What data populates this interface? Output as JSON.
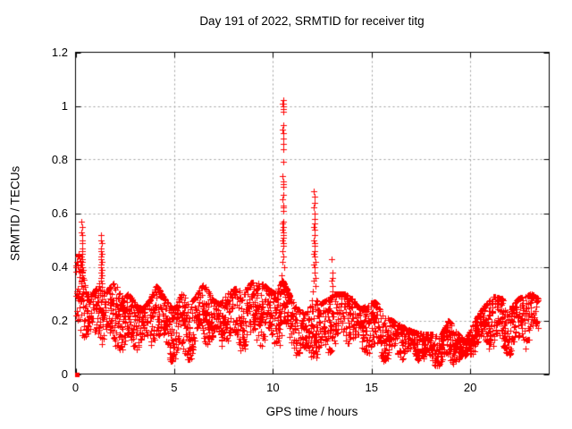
{
  "chart_data": {
    "type": "scatter",
    "title": "Day 191 of 2022, SRMTID for receiver titg",
    "xlabel": "GPS time / hours",
    "ylabel": "SRMTID / TECUs",
    "xlim": [
      0,
      24
    ],
    "ylim": [
      0,
      1.2
    ],
    "xticks": [
      {
        "v": 0,
        "label": "0"
      },
      {
        "v": 5,
        "label": "5"
      },
      {
        "v": 10,
        "label": "10"
      },
      {
        "v": 15,
        "label": "15"
      },
      {
        "v": 20,
        "label": "20"
      }
    ],
    "yticks": [
      {
        "v": 0,
        "label": "0"
      },
      {
        "v": 0.2,
        "label": "0.2"
      },
      {
        "v": 0.4,
        "label": "0.4"
      },
      {
        "v": 0.6,
        "label": "0.6"
      },
      {
        "v": 0.8,
        "label": "0.8"
      },
      {
        "v": 1,
        "label": "1"
      },
      {
        "v": 1.2,
        "label": "1.2"
      }
    ],
    "grid": true,
    "legend": "none",
    "marker": {
      "shape": "plus",
      "size": 7,
      "color": "#ff0000"
    },
    "grid_color": "#9e9e9e",
    "axis_color": "#000000",
    "tick_length": 6,
    "origin_point": {
      "x": 0,
      "y": 0,
      "shape": "square",
      "size": 5
    },
    "spike_points": [
      [
        0.3,
        0.57
      ],
      [
        0.32,
        0.55
      ],
      [
        0.31,
        0.53
      ],
      [
        0.34,
        0.52
      ],
      [
        0.33,
        0.5
      ],
      [
        0.35,
        0.49
      ],
      [
        0.32,
        0.47
      ],
      [
        0.36,
        0.46
      ],
      [
        0.34,
        0.45
      ],
      [
        0.3,
        0.44
      ],
      [
        0.33,
        0.43
      ],
      [
        0.35,
        0.42
      ],
      [
        0.31,
        0.41
      ],
      [
        0.34,
        0.4
      ],
      [
        0.32,
        0.39
      ],
      [
        0.36,
        0.38
      ],
      [
        0.33,
        0.37
      ],
      [
        0.35,
        0.36
      ],
      [
        0.31,
        0.35
      ],
      [
        0.28,
        0.33
      ],
      [
        0.38,
        0.32
      ],
      [
        1.28,
        0.52
      ],
      [
        1.3,
        0.5
      ],
      [
        1.32,
        0.49
      ],
      [
        1.29,
        0.47
      ],
      [
        1.31,
        0.46
      ],
      [
        1.33,
        0.45
      ],
      [
        1.3,
        0.44
      ],
      [
        1.28,
        0.43
      ],
      [
        1.32,
        0.42
      ],
      [
        1.31,
        0.41
      ],
      [
        1.29,
        0.4
      ],
      [
        1.33,
        0.39
      ],
      [
        1.3,
        0.38
      ],
      [
        1.32,
        0.37
      ],
      [
        1.28,
        0.36
      ],
      [
        1.31,
        0.35
      ],
      [
        1.34,
        0.34
      ],
      [
        10.52,
        1.02
      ],
      [
        10.5,
        1.01
      ],
      [
        10.54,
        1.01
      ],
      [
        10.52,
        1.0
      ],
      [
        10.51,
        0.99
      ],
      [
        10.53,
        0.98
      ],
      [
        10.52,
        0.93
      ],
      [
        10.5,
        0.91
      ],
      [
        10.54,
        0.9
      ],
      [
        10.52,
        0.88
      ],
      [
        10.51,
        0.86
      ],
      [
        10.53,
        0.84
      ],
      [
        10.52,
        0.79
      ],
      [
        10.5,
        0.74
      ],
      [
        10.53,
        0.72
      ],
      [
        10.51,
        0.71
      ],
      [
        10.54,
        0.7
      ],
      [
        10.52,
        0.67
      ],
      [
        10.5,
        0.65
      ],
      [
        10.53,
        0.63
      ],
      [
        10.51,
        0.62
      ],
      [
        10.54,
        0.61
      ],
      [
        10.52,
        0.57
      ],
      [
        10.48,
        0.56
      ],
      [
        10.55,
        0.55
      ],
      [
        10.5,
        0.54
      ],
      [
        10.53,
        0.53
      ],
      [
        10.51,
        0.52
      ],
      [
        10.54,
        0.51
      ],
      [
        10.49,
        0.5
      ],
      [
        10.52,
        0.49
      ],
      [
        10.55,
        0.48
      ],
      [
        10.47,
        0.46
      ],
      [
        10.53,
        0.44
      ],
      [
        10.5,
        0.42
      ],
      [
        10.56,
        0.4
      ],
      [
        10.45,
        0.37
      ],
      [
        10.58,
        0.34
      ],
      [
        10.42,
        0.31
      ],
      [
        10.6,
        0.29
      ],
      [
        12.08,
        0.68
      ],
      [
        12.1,
        0.66
      ],
      [
        12.12,
        0.64
      ],
      [
        12.09,
        0.62
      ],
      [
        12.11,
        0.6
      ],
      [
        12.13,
        0.58
      ],
      [
        12.1,
        0.56
      ],
      [
        12.08,
        0.55
      ],
      [
        12.12,
        0.54
      ],
      [
        12.11,
        0.52
      ],
      [
        12.09,
        0.5
      ],
      [
        12.13,
        0.49
      ],
      [
        12.1,
        0.48
      ],
      [
        12.12,
        0.46
      ],
      [
        12.08,
        0.45
      ],
      [
        12.11,
        0.44
      ],
      [
        12.14,
        0.42
      ],
      [
        12.09,
        0.41
      ],
      [
        12.12,
        0.4
      ],
      [
        12.1,
        0.38
      ],
      [
        12.15,
        0.36
      ],
      [
        12.06,
        0.35
      ],
      [
        12.17,
        0.33
      ],
      [
        12.04,
        0.31
      ],
      [
        12.98,
        0.43
      ],
      [
        13.0,
        0.38
      ],
      [
        13.02,
        0.36
      ],
      [
        12.99,
        0.35
      ],
      [
        13.01,
        0.33
      ],
      [
        13.03,
        0.31
      ],
      [
        13.0,
        0.29
      ],
      [
        12.97,
        0.28
      ]
    ],
    "envelope": [
      [
        0.0,
        0.1,
        0.4
      ],
      [
        0.15,
        0.12,
        0.45
      ],
      [
        0.35,
        0.12,
        0.4
      ],
      [
        0.55,
        0.1,
        0.3
      ],
      [
        0.9,
        0.1,
        0.3
      ],
      [
        1.2,
        0.12,
        0.34
      ],
      [
        1.5,
        0.1,
        0.3
      ],
      [
        1.8,
        0.1,
        0.33
      ],
      [
        2.1,
        0.12,
        0.35
      ],
      [
        2.4,
        0.08,
        0.28
      ],
      [
        2.7,
        0.1,
        0.3
      ],
      [
        3.0,
        0.1,
        0.26
      ],
      [
        3.4,
        0.08,
        0.24
      ],
      [
        3.8,
        0.08,
        0.28
      ],
      [
        4.1,
        0.1,
        0.33
      ],
      [
        4.5,
        0.08,
        0.28
      ],
      [
        5.0,
        0.05,
        0.24
      ],
      [
        5.4,
        0.08,
        0.3
      ],
      [
        5.8,
        0.06,
        0.26
      ],
      [
        6.2,
        0.08,
        0.3
      ],
      [
        6.5,
        0.1,
        0.34
      ],
      [
        6.9,
        0.08,
        0.28
      ],
      [
        7.3,
        0.08,
        0.26
      ],
      [
        7.7,
        0.1,
        0.3
      ],
      [
        8.1,
        0.1,
        0.32
      ],
      [
        8.5,
        0.1,
        0.3
      ],
      [
        8.9,
        0.12,
        0.34
      ],
      [
        9.3,
        0.12,
        0.35
      ],
      [
        9.7,
        0.1,
        0.32
      ],
      [
        10.1,
        0.08,
        0.3
      ],
      [
        10.5,
        0.1,
        0.35
      ],
      [
        10.9,
        0.08,
        0.28
      ],
      [
        11.3,
        0.06,
        0.24
      ],
      [
        11.7,
        0.06,
        0.22
      ],
      [
        12.0,
        0.08,
        0.3
      ],
      [
        12.4,
        0.06,
        0.26
      ],
      [
        12.8,
        0.08,
        0.28
      ],
      [
        13.2,
        0.08,
        0.3
      ],
      [
        13.6,
        0.1,
        0.3
      ],
      [
        14.0,
        0.08,
        0.28
      ],
      [
        14.4,
        0.08,
        0.24
      ],
      [
        14.8,
        0.08,
        0.26
      ],
      [
        15.2,
        0.08,
        0.27
      ],
      [
        15.6,
        0.06,
        0.22
      ],
      [
        16.0,
        0.06,
        0.2
      ],
      [
        16.5,
        0.05,
        0.18
      ],
      [
        17.0,
        0.05,
        0.16
      ],
      [
        17.5,
        0.04,
        0.15
      ],
      [
        18.0,
        0.04,
        0.15
      ],
      [
        18.5,
        0.04,
        0.14
      ],
      [
        18.9,
        0.05,
        0.2
      ],
      [
        19.3,
        0.05,
        0.16
      ],
      [
        19.7,
        0.04,
        0.12
      ],
      [
        20.0,
        0.06,
        0.16
      ],
      [
        20.4,
        0.08,
        0.22
      ],
      [
        20.8,
        0.08,
        0.26
      ],
      [
        21.2,
        0.1,
        0.29
      ],
      [
        21.6,
        0.1,
        0.28
      ],
      [
        22.0,
        0.08,
        0.24
      ],
      [
        22.4,
        0.1,
        0.28
      ],
      [
        22.8,
        0.1,
        0.29
      ],
      [
        23.1,
        0.12,
        0.3
      ],
      [
        23.45,
        0.12,
        0.28
      ]
    ],
    "generation": {
      "seed": 191,
      "t_start": 0.0,
      "t_end": 23.45,
      "epoch_dt": 0.02,
      "points_per_epoch_min": 1,
      "points_per_epoch_max": 4,
      "wave_base": 0.22,
      "wave_a1": 0.35,
      "wave_f1": 7.0,
      "wave_p1": 2.1,
      "wave_a2": 0.2,
      "wave_f2": 1.9,
      "wave_p2": 0.7,
      "column_spread": 0.55,
      "spread_center": 0.35,
      "x_jitter": 0.01,
      "v_floor": 0.03
    }
  }
}
